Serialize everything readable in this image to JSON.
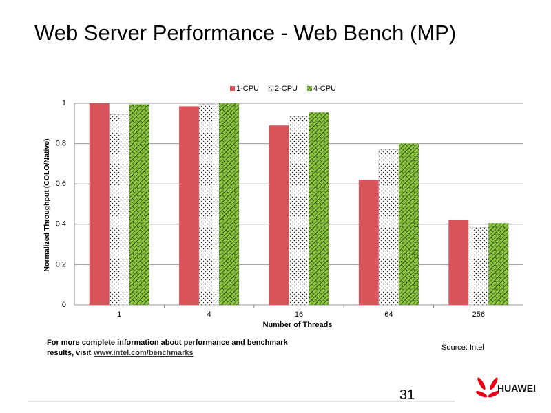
{
  "slide_title": "Web Server Performance - Web Bench (MP)",
  "chart_data": {
    "type": "bar",
    "categories": [
      "1",
      "4",
      "16",
      "64",
      "256"
    ],
    "series": [
      {
        "name": "1-CPU",
        "color": "#d9545a",
        "pattern": "solid",
        "values": [
          1.0,
          0.985,
          0.89,
          0.62,
          0.42
        ]
      },
      {
        "name": "2-CPU",
        "color": "#ffffff",
        "pattern": "dots",
        "values": [
          0.945,
          0.995,
          0.935,
          0.77,
          0.385
        ]
      },
      {
        "name": "4-CPU",
        "color": "#8cc63f",
        "pattern": "bricks",
        "values": [
          0.995,
          1.0,
          0.955,
          0.8,
          0.405
        ]
      }
    ],
    "x_label": "Number of Threads",
    "y_label": "Normalized Throughput (COLO/Native)",
    "ylim": [
      0,
      1
    ],
    "yticks": [
      0,
      0.2,
      0.4,
      0.6,
      0.8,
      1
    ],
    "grid": true,
    "legend": "top"
  },
  "footer": {
    "note_lines": [
      "For more complete information about performance and benchmark",
      "results, visit"
    ],
    "link": "www.intel.com/benchmarks",
    "source": "Source: Intel",
    "page_number": "31",
    "logo": "HUAWEI"
  }
}
